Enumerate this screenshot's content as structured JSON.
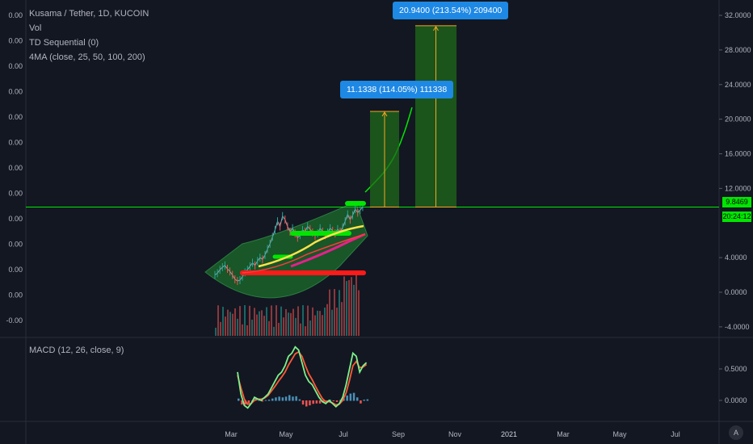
{
  "legend": {
    "symbol": "Kusama / Tether, 1D, KUCOIN",
    "vol": "Vol",
    "td": "TD Sequential (0)",
    "ma": "4MA (close, 25, 50, 100, 200)"
  },
  "macd_label": "MACD (12, 26, close, 9)",
  "colors": {
    "background": "#131722",
    "up": "#26a69a",
    "down": "#ef5350",
    "accent_green": "#00e600",
    "callout_blue": "#1e88e5",
    "target_orange": "#f5a623",
    "ma_red": "#ff1a1a",
    "ma_yellow": "#ffe24a",
    "ma_magenta": "#e91e8c",
    "macd_line": "#7cf08a",
    "signal_line": "#ff5a36"
  },
  "callouts": {
    "target1": "11.1338 (114.05%) 111338",
    "target2": "20.9400 (213.54%) 209400"
  },
  "price_tag": {
    "price": "9.8469",
    "countdown": "20:24:12"
  },
  "chart_data": [
    {
      "type": "line",
      "title": "Kusama / Tether, 1D, KUCOIN",
      "ylim": [
        -6,
        34
      ],
      "y_ticks": [
        "32.0000",
        "28.0000",
        "24.0000",
        "20.0000",
        "16.0000",
        "12.0000",
        "4.0000",
        "0.0000",
        "-4.0000"
      ],
      "left_scale_labels": [
        "0.00",
        "0.00",
        "0.00",
        "0.00",
        "0.00",
        "0.00",
        "0.00",
        "0.00",
        "0.00",
        "0.00",
        "0.00",
        "0.00",
        "-0.00"
      ],
      "x_ticks": [
        "Mar",
        "May",
        "Jul",
        "Sep",
        "Nov",
        "2021",
        "Mar",
        "May",
        "Jul"
      ],
      "current_price": 9.8469,
      "series": [
        {
          "name": "",
          "x": [
            0,
            1,
            2,
            3,
            4,
            5,
            6,
            7,
            8,
            9,
            10,
            11,
            12,
            13,
            14,
            15,
            16,
            17,
            18,
            19,
            20,
            21,
            22,
            23,
            24,
            25,
            26,
            27,
            28,
            29,
            30,
            31,
            32,
            33,
            34,
            35,
            36,
            37,
            38,
            39,
            40,
            41,
            42,
            43,
            44,
            45,
            46,
            47,
            48,
            49,
            50,
            51,
            52,
            53,
            54,
            55,
            56,
            57,
            58,
            59
          ],
          "y": [
            2.0,
            2.2,
            2.6,
            2.9,
            3.1,
            2.7,
            2.4,
            2.0,
            1.5,
            1.3,
            1.4,
            1.8,
            2.3,
            2.6,
            3.0,
            3.4,
            3.1,
            3.6,
            4.0,
            3.8,
            4.3,
            5.0,
            5.6,
            6.4,
            7.2,
            8.2,
            7.6,
            8.8,
            8.4,
            7.6,
            7.0,
            7.4,
            6.8,
            6.3,
            6.6,
            7.2,
            7.0,
            7.6,
            7.3,
            6.9,
            6.5,
            6.8,
            7.4,
            7.0,
            6.6,
            6.9,
            7.4,
            7.1,
            6.8,
            7.3,
            7.0,
            7.5,
            8.2,
            9.0,
            8.4,
            8.9,
            9.6,
            9.2,
            9.5,
            9.85
          ]
        }
      ],
      "projection": {
        "from": 9.85,
        "to": 20.0
      },
      "targets": [
        {
          "label": "11.1338 (114.05%) 111338",
          "bottom": 9.8469,
          "top": 20.9
        },
        {
          "label": "20.9400 (213.54%) 209400",
          "bottom": 9.8469,
          "top": 30.8
        }
      ],
      "moving_averages": [
        {
          "name": "MA200",
          "y": 1.7
        },
        {
          "name": "MA100",
          "y": 6.6
        }
      ],
      "grid": false
    },
    {
      "type": "line",
      "title": "MACD (12, 26, close, 9)",
      "ylim": [
        -0.2,
        0.9
      ],
      "y_ticks": [
        "0.5000",
        "0.0000"
      ],
      "series": [
        {
          "name": "",
          "values": [
            0.45,
            0.1,
            -0.08,
            -0.12,
            -0.05,
            0.05,
            0.02,
            0.0,
            0.05,
            0.1,
            0.2,
            0.3,
            0.4,
            0.45,
            0.55,
            0.7,
            0.75,
            0.85,
            0.8,
            0.6,
            0.4,
            0.3,
            0.25,
            0.15,
            0.05,
            -0.02,
            -0.05,
            0.0,
            -0.05,
            -0.1,
            -0.05,
            0.05,
            0.25,
            0.5,
            0.75,
            0.7,
            0.45,
            0.55,
            0.6
          ]
        },
        {
          "name": "",
          "values": [
            0.4,
            0.2,
            0.02,
            -0.06,
            -0.05,
            0.0,
            0.02,
            0.02,
            0.04,
            0.08,
            0.15,
            0.22,
            0.3,
            0.37,
            0.45,
            0.56,
            0.65,
            0.74,
            0.77,
            0.7,
            0.55,
            0.42,
            0.33,
            0.22,
            0.12,
            0.03,
            -0.02,
            -0.02,
            -0.04,
            -0.07,
            -0.06,
            0.0,
            0.12,
            0.32,
            0.55,
            0.62,
            0.52,
            0.53,
            0.57
          ]
        }
      ]
    }
  ]
}
